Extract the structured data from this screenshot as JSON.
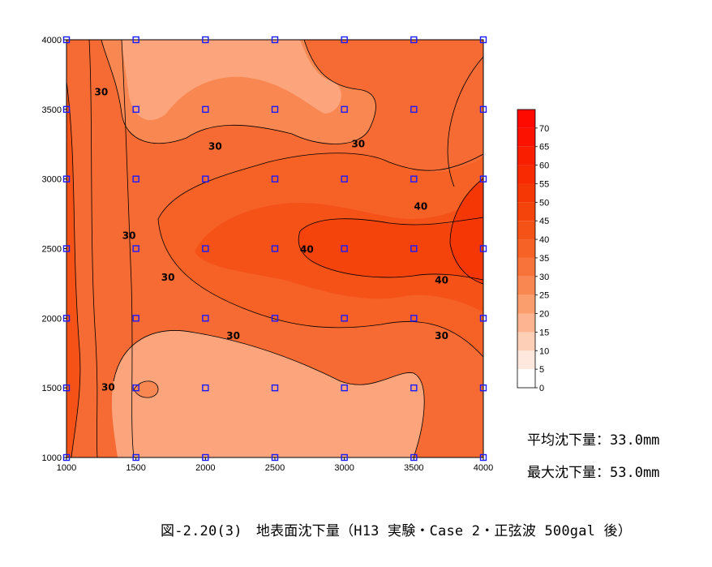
{
  "chart_data": {
    "type": "contour",
    "xlim": [
      1000,
      4000
    ],
    "ylim": [
      1000,
      4000
    ],
    "x_ticks": [
      1000,
      1500,
      2000,
      2500,
      3000,
      3500,
      4000
    ],
    "y_ticks": [
      1000,
      1500,
      2000,
      2500,
      3000,
      3500,
      4000
    ],
    "measurement_points_x": [
      1000,
      1500,
      2000,
      2500,
      3000,
      3500,
      4000
    ],
    "measurement_points_y": [
      1000,
      1500,
      2000,
      2500,
      3000,
      3500,
      4000
    ],
    "contour_labels": [
      {
        "value": "30",
        "x": 1250,
        "y": 3620
      },
      {
        "value": "30",
        "x": 2070,
        "y": 3230
      },
      {
        "value": "30",
        "x": 3100,
        "y": 3250
      },
      {
        "value": "40",
        "x": 3550,
        "y": 2800
      },
      {
        "value": "30",
        "x": 1450,
        "y": 2590
      },
      {
        "value": "40",
        "x": 2730,
        "y": 2490
      },
      {
        "value": "30",
        "x": 1730,
        "y": 2290
      },
      {
        "value": "40",
        "x": 3700,
        "y": 2270
      },
      {
        "value": "30",
        "x": 2200,
        "y": 1870
      },
      {
        "value": "30",
        "x": 3700,
        "y": 1870
      },
      {
        "value": "30",
        "x": 1300,
        "y": 1500
      }
    ],
    "colorbar": {
      "levels": [
        0,
        5,
        10,
        15,
        20,
        25,
        30,
        35,
        40,
        45,
        50,
        55,
        60,
        65,
        70
      ],
      "colors": [
        "#ffffff",
        "#fee7dc",
        "#fdcfb6",
        "#fcb590",
        "#fb9e6e",
        "#f98752",
        "#f7733a",
        "#f66126",
        "#f55217",
        "#f5430c",
        "#f53605",
        "#f72a01",
        "#f91e00",
        "#fc1200",
        "#ff0a00"
      ]
    }
  },
  "stats": {
    "average_label": "平均沈下量：",
    "average_value": "33.0mm",
    "max_label": "最大沈下量：",
    "max_value": "53.0mm"
  },
  "caption": "図-2.20(3)　地表面沈下量（H13 実験・Case 2・正弦波 500gal 後）"
}
